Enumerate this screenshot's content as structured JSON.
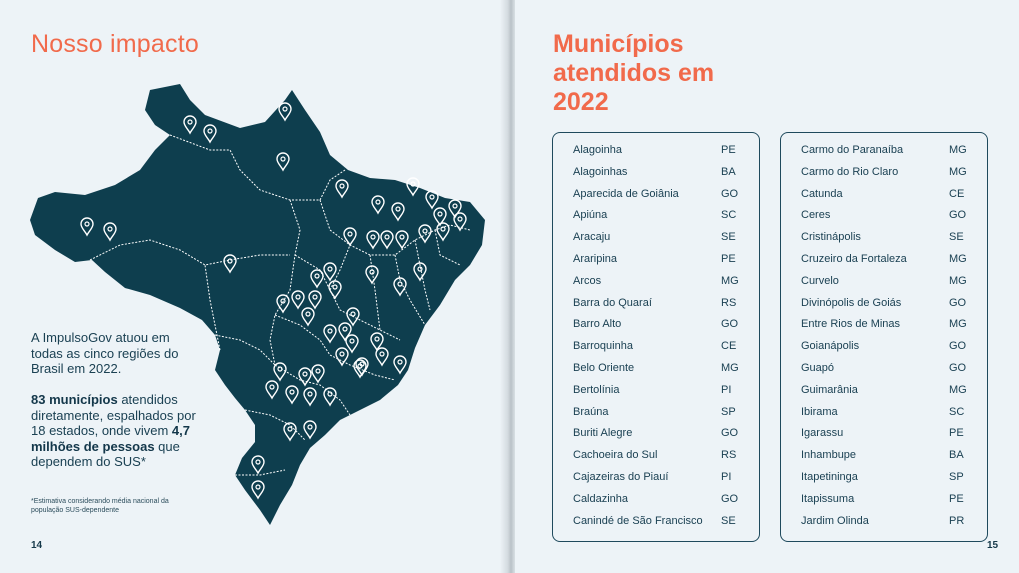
{
  "left_page": {
    "title": "Nosso impacto",
    "intro": "A ImpulsoGov atuou em todas as cinco regiões do Brasil em 2022.",
    "stats": {
      "bold1": "83 municípios",
      "text1": " atendidos diretamente, espalhados por 18 estados, onde vivem ",
      "bold2": "4,7 milhões de pessoas",
      "text2": " que dependem do SUS*"
    },
    "footnote": "*Estimativa considerando média nacional da população SUS-dependente",
    "page_number": "14",
    "map": {
      "fill_color": "#0e3e4e",
      "border_color": "#ffffff",
      "marker_icon": "map-pin-icon"
    }
  },
  "right_page": {
    "title": "Municípios atendidos em 2022",
    "page_number": "15",
    "column_a": [
      {
        "name": "Alagoinha",
        "uf": "PE"
      },
      {
        "name": "Alagoinhas",
        "uf": "BA"
      },
      {
        "name": "Aparecida de Goiânia",
        "uf": "GO"
      },
      {
        "name": "Apiúna",
        "uf": "SC"
      },
      {
        "name": "Aracaju",
        "uf": "SE"
      },
      {
        "name": "Araripina",
        "uf": "PE"
      },
      {
        "name": "Arcos",
        "uf": "MG"
      },
      {
        "name": "Barra do Quaraí",
        "uf": "RS"
      },
      {
        "name": "Barro Alto",
        "uf": "GO"
      },
      {
        "name": "Barroquinha",
        "uf": "CE"
      },
      {
        "name": "Belo Oriente",
        "uf": "MG"
      },
      {
        "name": "Bertolínia",
        "uf": "PI"
      },
      {
        "name": "Braúna",
        "uf": "SP"
      },
      {
        "name": "Buriti Alegre",
        "uf": "GO"
      },
      {
        "name": "Cachoeira do Sul",
        "uf": "RS"
      },
      {
        "name": "Cajazeiras do Piauí",
        "uf": "PI"
      },
      {
        "name": "Caldazinha",
        "uf": "GO"
      },
      {
        "name": "Canindé de São Francisco",
        "uf": "SE"
      }
    ],
    "column_b": [
      {
        "name": "Carmo do Paranaíba",
        "uf": "MG"
      },
      {
        "name": "Carmo do Rio Claro",
        "uf": "MG"
      },
      {
        "name": "Catunda",
        "uf": "CE"
      },
      {
        "name": "Ceres",
        "uf": "GO"
      },
      {
        "name": "Cristinápolis",
        "uf": "SE"
      },
      {
        "name": "Cruzeiro da Fortaleza",
        "uf": "MG"
      },
      {
        "name": "Curvelo",
        "uf": "MG"
      },
      {
        "name": "Divinópolis de Goiás",
        "uf": "GO"
      },
      {
        "name": "Entre Rios de Minas",
        "uf": "MG"
      },
      {
        "name": "Goianápolis",
        "uf": "GO"
      },
      {
        "name": "Guapó",
        "uf": "GO"
      },
      {
        "name": "Guimarânia",
        "uf": "MG"
      },
      {
        "name": "Ibirama",
        "uf": "SC"
      },
      {
        "name": "Igarassu",
        "uf": "PE"
      },
      {
        "name": "Inhambupe",
        "uf": "BA"
      },
      {
        "name": "Itapetininga",
        "uf": "SP"
      },
      {
        "name": "Itapissuma",
        "uf": "PE"
      },
      {
        "name": "Jardim Olinda",
        "uf": "PR"
      }
    ]
  }
}
